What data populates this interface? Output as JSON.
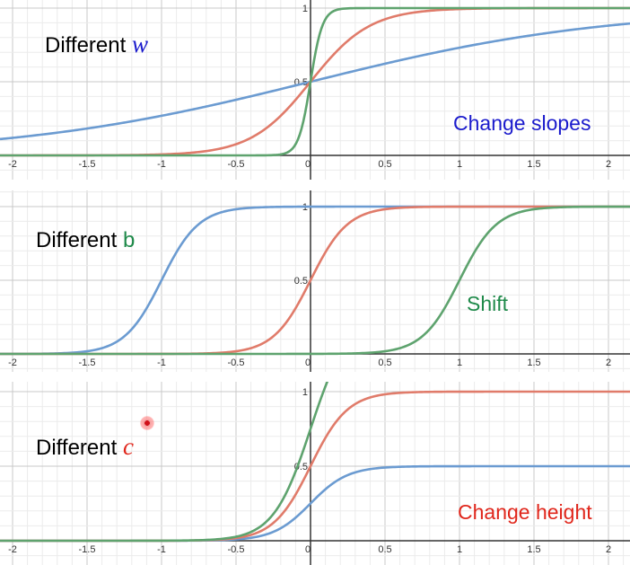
{
  "colors": {
    "blue": "#6b9bd1",
    "red": "#e07b6a",
    "green": "#5ea36e",
    "axis": "#333333",
    "grid_major": "#c8c8c8",
    "grid_minor": "#ebebeb",
    "label_w": "#1a1acc",
    "label_b": "#1f8a4a",
    "label_c": "#e0261b"
  },
  "panels": {
    "slopes": {
      "prefix": "Different ",
      "variable": "w",
      "note": "Change slopes"
    },
    "shift": {
      "prefix": "Different ",
      "variable": "b",
      "note": "Shift"
    },
    "height": {
      "prefix": "Different ",
      "variable": "c",
      "note": "Change height"
    }
  },
  "chart_data": [
    {
      "type": "line",
      "function": "y = c * sigmoid(w * x + b)",
      "xlim": [
        -2.07,
        2.07
      ],
      "ylim": [
        -0.02,
        1.08
      ],
      "x_ticks": [
        "-2",
        "-1.5",
        "-1",
        "-0.5",
        "0",
        "0.5",
        "1",
        "1.5",
        "2"
      ],
      "y_ticks": [
        "0.5",
        "1"
      ],
      "grid": true,
      "series": [
        {
          "color": "blue",
          "params": {
            "c": 1,
            "w": 1,
            "b": 0
          }
        },
        {
          "color": "red",
          "params": {
            "c": 1,
            "w": 5,
            "b": 0
          }
        },
        {
          "color": "green",
          "params": {
            "c": 1,
            "w": 25,
            "b": 0
          }
        }
      ]
    },
    {
      "type": "line",
      "function": "y = c * sigmoid(w * x + b)",
      "xlim": [
        -2.07,
        2.07
      ],
      "ylim": [
        -0.02,
        1.08
      ],
      "x_ticks": [
        "-2",
        "-1.5",
        "-1",
        "-0.5",
        "0",
        "0.5",
        "1",
        "1.5",
        "2"
      ],
      "y_ticks": [
        "0.5",
        "1"
      ],
      "grid": true,
      "series": [
        {
          "color": "blue",
          "params": {
            "c": 1,
            "w": 8,
            "b": 8
          }
        },
        {
          "color": "red",
          "params": {
            "c": 1,
            "w": 8,
            "b": 0
          }
        },
        {
          "color": "green",
          "params": {
            "c": 1,
            "w": 8,
            "b": -8
          }
        }
      ]
    },
    {
      "type": "line",
      "function": "y = c * sigmoid(w * x + b)",
      "xlim": [
        -2.07,
        2.07
      ],
      "ylim": [
        -0.02,
        1.08
      ],
      "x_ticks": [
        "-2",
        "-1.5",
        "-1",
        "-0.5",
        "0",
        "0.5",
        "1",
        "1.5",
        "2"
      ],
      "y_ticks": [
        "0.5",
        "1"
      ],
      "grid": true,
      "series": [
        {
          "color": "blue",
          "params": {
            "c": 0.5,
            "w": 8,
            "b": 0
          }
        },
        {
          "color": "red",
          "params": {
            "c": 1,
            "w": 8,
            "b": 0
          }
        },
        {
          "color": "green",
          "params": {
            "c": 1.5,
            "w": 8,
            "b": 0
          }
        }
      ]
    }
  ]
}
